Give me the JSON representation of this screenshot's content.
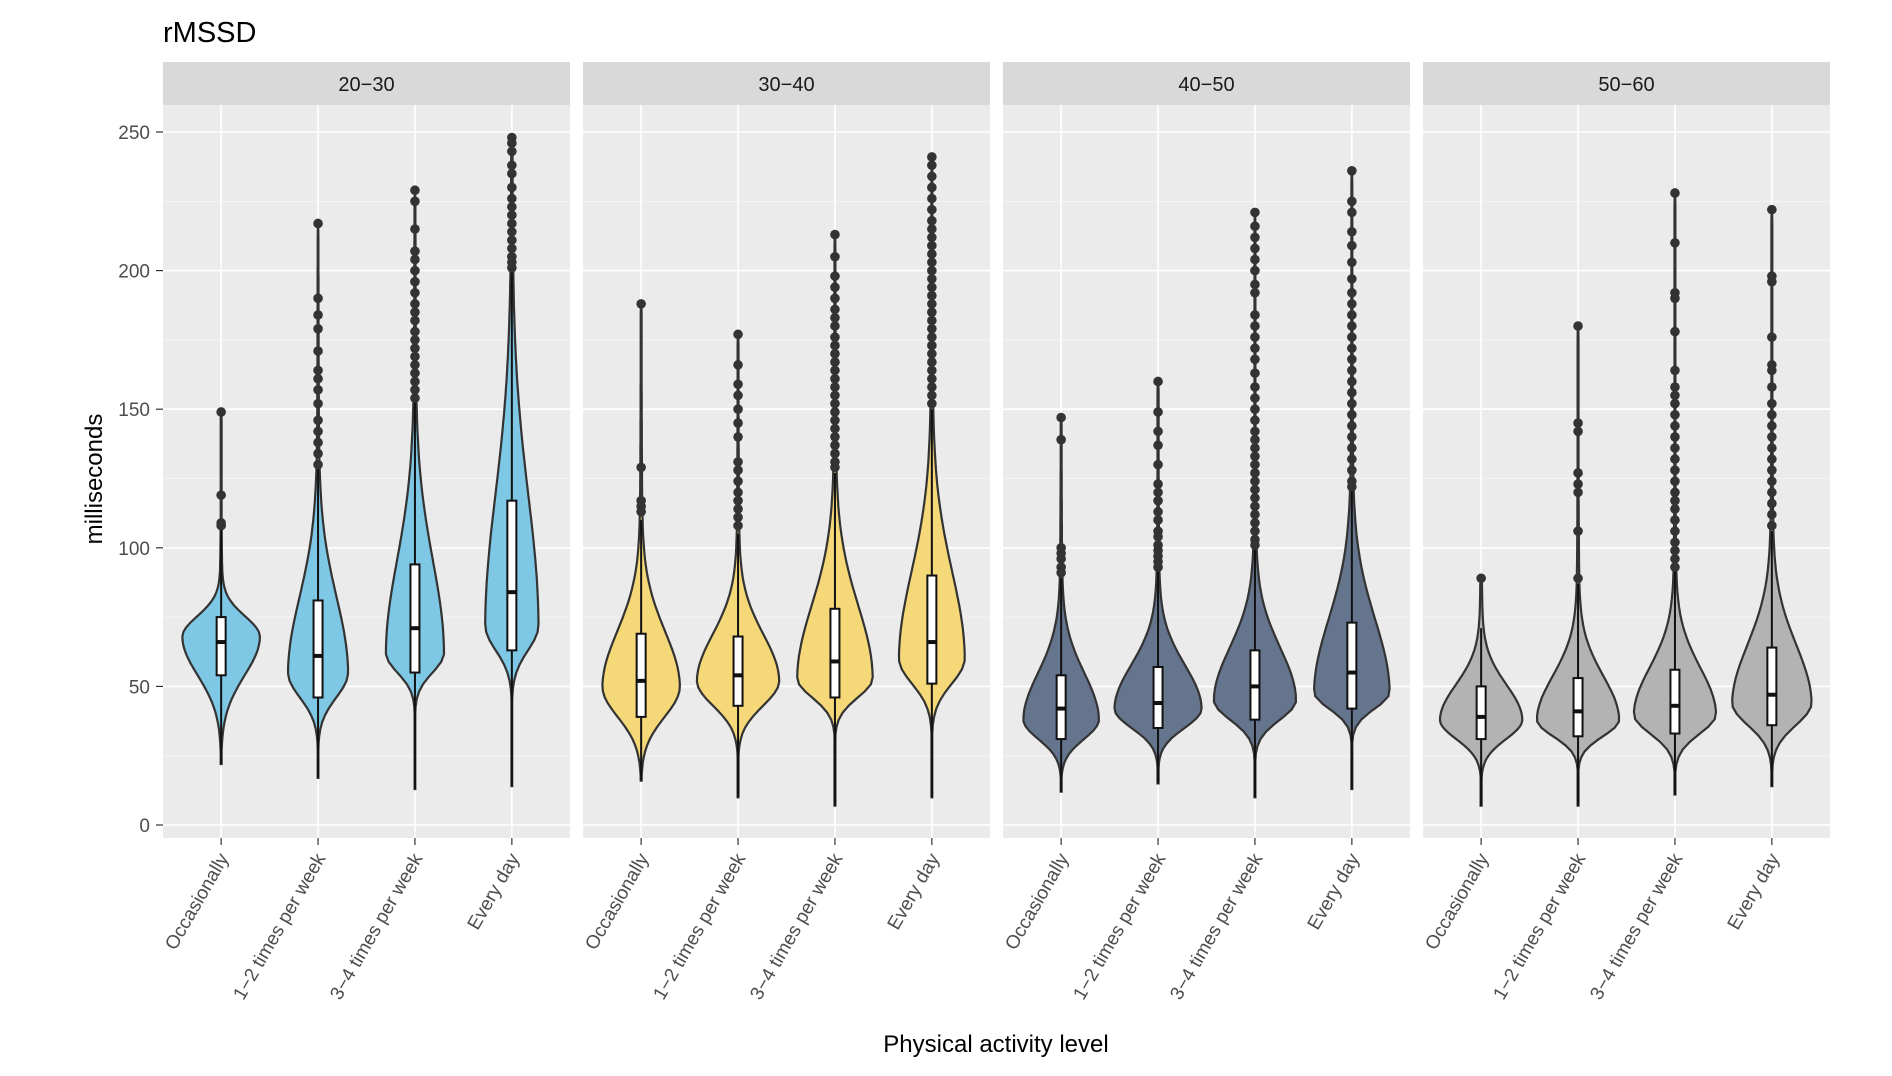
{
  "chart_data": {
    "type": "violin",
    "title": "rMSSD",
    "xlabel": "Physical activity level",
    "ylabel": "milliseconds",
    "ylim": [
      -4,
      253
    ],
    "yticks": [
      0,
      50,
      100,
      150,
      200,
      250
    ],
    "categories": [
      "Occasionally",
      "1−2 times per week",
      "3−4 times per week",
      "Every day"
    ],
    "grid": true,
    "panels": [
      {
        "label": "20−30",
        "color": "#7ec8e6",
        "groups": [
          {
            "min": 22,
            "q1": 54,
            "median": 66,
            "q3": 75,
            "max": 108,
            "dmax": 149,
            "mode": 68,
            "width": 0.8,
            "outliers": [
              149,
              119,
              109,
              108
            ]
          },
          {
            "min": 17,
            "q1": 46,
            "median": 61,
            "q3": 81,
            "max": 130,
            "dmax": 217,
            "mode": 55,
            "width": 0.62,
            "outliers": [
              217,
              190,
              184,
              179,
              171,
              164,
              161,
              157,
              152,
              146,
              142,
              138,
              134,
              130
            ]
          },
          {
            "min": 13,
            "q1": 55,
            "median": 71,
            "q3": 94,
            "max": 153,
            "dmax": 229,
            "mode": 62,
            "width": 0.6,
            "outliers": [
              229,
              225,
              215,
              207,
              204,
              200,
              196,
              192,
              188,
              185,
              182,
              178,
              175,
              172,
              169,
              166,
              163,
              160,
              157,
              154
            ]
          },
          {
            "min": 14,
            "q1": 63,
            "median": 84,
            "q3": 117,
            "max": 200,
            "dmax": 248,
            "mode": 72,
            "width": 0.55,
            "outliers": [
              248,
              246,
              243,
              238,
              235,
              230,
              226,
              223,
              220,
              217,
              214,
              211,
              208,
              205,
              203,
              201
            ]
          }
        ]
      },
      {
        "label": "30−40",
        "color": "#f5d878",
        "groups": [
          {
            "min": 16,
            "q1": 39,
            "median": 52,
            "q3": 69,
            "max": 110,
            "dmax": 188,
            "mode": 50,
            "width": 0.8,
            "outliers": [
              188,
              129,
              117,
              115,
              113
            ]
          },
          {
            "min": 10,
            "q1": 43,
            "median": 54,
            "q3": 68,
            "max": 105,
            "dmax": 177,
            "mode": 52,
            "width": 0.85,
            "outliers": [
              177,
              166,
              159,
              155,
              150,
              145,
              140,
              131,
              128,
              124,
              120,
              117,
              114,
              111,
              108
            ]
          },
          {
            "min": 7,
            "q1": 46,
            "median": 59,
            "q3": 78,
            "max": 127,
            "dmax": 213,
            "mode": 53,
            "width": 0.78,
            "outliers": [
              213,
              205,
              198,
              194,
              190,
              186,
              183,
              180,
              176,
              173,
              170,
              167,
              164,
              161,
              158,
              155,
              152,
              149,
              146,
              143,
              140,
              137,
              134,
              131,
              129
            ]
          },
          {
            "min": 10,
            "q1": 51,
            "median": 66,
            "q3": 90,
            "max": 150,
            "dmax": 241,
            "mode": 60,
            "width": 0.68,
            "outliers": [
              241,
              238,
              234,
              230,
              226,
              222,
              218,
              215,
              212,
              209,
              206,
              203,
              200,
              197,
              194,
              191,
              188,
              185,
              182,
              179,
              176,
              173,
              170,
              167,
              164,
              161,
              158,
              155,
              152
            ]
          }
        ]
      },
      {
        "label": "40−50",
        "color": "#66758e",
        "groups": [
          {
            "min": 12,
            "q1": 31,
            "median": 42,
            "q3": 54,
            "max": 89,
            "dmax": 147,
            "mode": 38,
            "width": 0.78,
            "outliers": [
              147,
              139,
              100,
              98,
              96,
              93,
              91
            ]
          },
          {
            "min": 15,
            "q1": 35,
            "median": 44,
            "q3": 57,
            "max": 92,
            "dmax": 160,
            "mode": 42,
            "width": 0.9,
            "outliers": [
              160,
              149,
              142,
              137,
              130,
              123,
              120,
              117,
              113,
              110,
              106,
              104,
              101,
              99,
              97,
              95,
              93
            ]
          },
          {
            "min": 10,
            "q1": 38,
            "median": 50,
            "q3": 63,
            "max": 100,
            "dmax": 221,
            "mode": 45,
            "width": 0.85,
            "outliers": [
              221,
              216,
              212,
              208,
              204,
              200,
              195,
              192,
              184,
              180,
              176,
              172,
              168,
              163,
              158,
              154,
              150,
              146,
              142,
              139,
              136,
              133,
              130,
              127,
              124,
              121,
              118,
              115,
              112,
              109,
              106,
              103,
              101
            ]
          },
          {
            "min": 13,
            "q1": 42,
            "median": 55,
            "q3": 73,
            "max": 121,
            "dmax": 236,
            "mode": 48,
            "width": 0.78,
            "outliers": [
              236,
              225,
              221,
              214,
              209,
              203,
              197,
              192,
              188,
              184,
              180,
              176,
              172,
              168,
              164,
              160,
              156,
              152,
              148,
              144,
              140,
              136,
              132,
              128,
              124,
              122
            ]
          }
        ]
      },
      {
        "label": "50−60",
        "color": "#b3b3b3",
        "groups": [
          {
            "min": 7,
            "q1": 31,
            "median": 39,
            "q3": 50,
            "max": 71,
            "dmax": 89,
            "mode": 38,
            "width": 0.85,
            "outliers": [
              89
            ]
          },
          {
            "min": 7,
            "q1": 32,
            "median": 41,
            "q3": 53,
            "max": 87,
            "dmax": 180,
            "mode": 38,
            "width": 0.85,
            "outliers": [
              180,
              145,
              142,
              127,
              123,
              120,
              106,
              89
            ]
          },
          {
            "min": 11,
            "q1": 33,
            "median": 43,
            "q3": 56,
            "max": 92,
            "dmax": 228,
            "mode": 40,
            "width": 0.85,
            "outliers": [
              228,
              210,
              192,
              190,
              178,
              164,
              158,
              155,
              152,
              148,
              144,
              140,
              136,
              132,
              128,
              124,
              120,
              117,
              114,
              110,
              106,
              102,
              99,
              96,
              93
            ]
          },
          {
            "min": 14,
            "q1": 36,
            "median": 47,
            "q3": 64,
            "max": 106,
            "dmax": 222,
            "mode": 44,
            "width": 0.82,
            "outliers": [
              222,
              198,
              196,
              176,
              166,
              164,
              158,
              152,
              148,
              144,
              140,
              136,
              132,
              128,
              124,
              120,
              116,
              112,
              108
            ]
          }
        ]
      }
    ]
  }
}
